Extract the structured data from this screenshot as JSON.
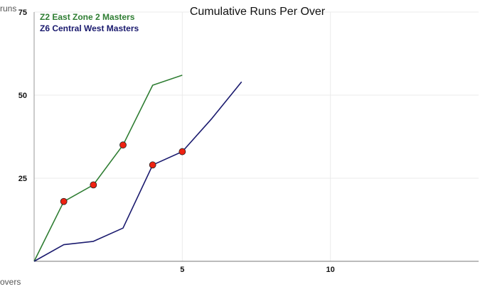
{
  "chart_data": {
    "type": "line",
    "title": "Cumulative Runs Per Over",
    "xlabel": "overs",
    "ylabel": "runs",
    "xlim": [
      0,
      15
    ],
    "ylim": [
      0,
      75
    ],
    "x_ticks": [
      5,
      10
    ],
    "y_ticks": [
      25,
      50,
      75
    ],
    "grid": true,
    "legend_position": "top-left",
    "series": [
      {
        "name": "Z2 East Zone 2 Masters",
        "color": "#2e7d32",
        "x": [
          0,
          1,
          2,
          3,
          4,
          5
        ],
        "values": [
          0,
          18,
          23,
          35,
          53,
          56
        ],
        "wicket_overs": [
          1,
          2,
          3
        ]
      },
      {
        "name": "Z6 Central West Masters",
        "color": "#1a1a6e",
        "x": [
          0,
          1,
          2,
          3,
          4,
          5,
          6,
          7
        ],
        "values": [
          0,
          5,
          6,
          10,
          29,
          33,
          43,
          54
        ],
        "wicket_overs": [
          4,
          5
        ]
      }
    ],
    "marker_color": "#ee2211"
  }
}
